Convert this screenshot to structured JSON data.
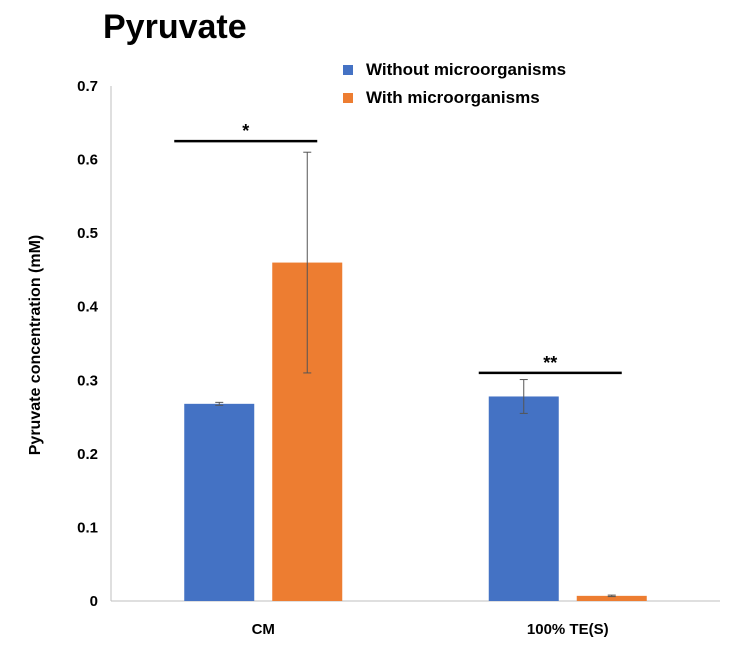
{
  "chart_data": {
    "type": "bar",
    "title": "Pyruvate",
    "ylabel": "Pyruvate concentration (mM)",
    "xlabel": "",
    "ylim": [
      0,
      0.7
    ],
    "yticks": [
      "0",
      "0.1",
      "0.2",
      "0.3",
      "0.4",
      "0.5",
      "0.6",
      "0.7"
    ],
    "categories": [
      "CM",
      "100% TE(S)"
    ],
    "legend_position": "top-right",
    "grid": false,
    "series": [
      {
        "name": "Without microorganisms",
        "color": "#4472C4",
        "values": [
          0.268,
          0.278
        ],
        "errors": [
          0.002,
          0.023
        ]
      },
      {
        "name": "With microorganisms",
        "color": "#ED7D31",
        "values": [
          0.46,
          0.007
        ],
        "errors": [
          0.15,
          0.001
        ]
      }
    ],
    "annotations": [
      {
        "category": "CM",
        "text": "*",
        "y": 0.625
      },
      {
        "category": "100% TE(S)",
        "text": "**",
        "y": 0.31
      }
    ]
  }
}
